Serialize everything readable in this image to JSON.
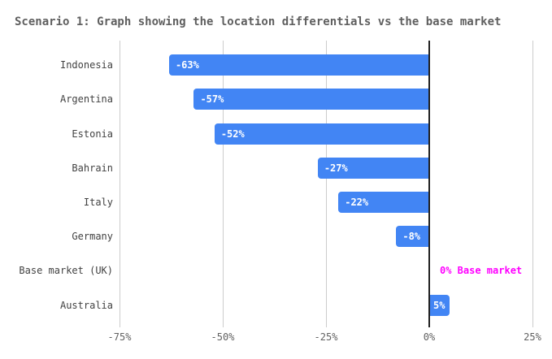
{
  "chart_data": {
    "type": "bar",
    "orientation": "horizontal",
    "title": "Scenario 1: Graph showing the location differentials vs the base market",
    "categories": [
      "Indonesia",
      "Argentina",
      "Estonia",
      "Bahrain",
      "Italy",
      "Germany",
      "Base market (UK)",
      "Australia"
    ],
    "values": [
      -63,
      -57,
      -52,
      -27,
      -22,
      -8,
      0,
      5
    ],
    "bar_labels": [
      "-63%",
      "-57%",
      "-52%",
      "-27%",
      "-22%",
      "-8%",
      "",
      "5%"
    ],
    "annotation": {
      "row_index": 6,
      "text": "0% Base market",
      "color": "#ff00ff"
    },
    "x_ticks": [
      {
        "value": -75,
        "label": "-75%"
      },
      {
        "value": -50,
        "label": "-50%"
      },
      {
        "value": -25,
        "label": "-25%"
      },
      {
        "value": 0,
        "label": "0%"
      },
      {
        "value": 25,
        "label": "25%"
      }
    ],
    "x_min": -75,
    "x_max": 26,
    "grid": true,
    "legend": false,
    "colors": {
      "bar": "#4285f4",
      "bar_label": "#ffffff",
      "title": "#5f5f5f",
      "category_label": "#424242",
      "tick_label": "#616161",
      "gridline": "#cccccc",
      "zero_line": "#212121",
      "background": "#ffffff"
    }
  }
}
